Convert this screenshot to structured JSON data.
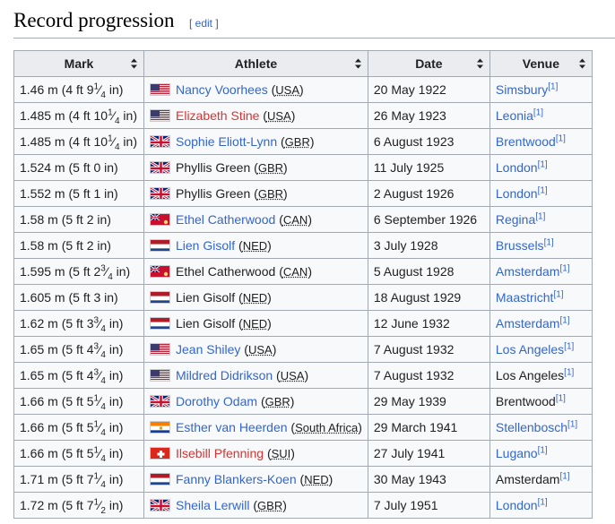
{
  "section": {
    "title": "Record progression",
    "edit_open": "[",
    "edit_label": "edit",
    "edit_close": "]"
  },
  "table": {
    "headers": [
      "Mark",
      "Athlete",
      "Date",
      "Venue"
    ],
    "rows": [
      {
        "mark": [
          "1.46 m (4 ft 9",
          "1",
          "4",
          " in)"
        ],
        "athlete": "Nancy Voorhees",
        "athlete_style": "link",
        "flag": "usa",
        "country": "USA",
        "date": "20 May 1922",
        "venue": "Simsbury",
        "venue_link": true,
        "ref": "[1]"
      },
      {
        "mark": [
          "1.485 m (4 ft 10",
          "1",
          "4",
          " in)"
        ],
        "athlete": "Elizabeth Stine",
        "athlete_style": "redlink",
        "flag": "usa",
        "country": "USA",
        "date": "26 May 1923",
        "venue": "Leonia",
        "venue_link": true,
        "ref": "[1]"
      },
      {
        "mark": [
          "1.485 m (4 ft 10",
          "1",
          "4",
          " in)"
        ],
        "athlete": "Sophie Eliott-Lynn",
        "athlete_style": "link",
        "flag": "gbr",
        "country": "GBR",
        "date": "6 August 1923",
        "venue": "Brentwood",
        "venue_link": true,
        "ref": "[1]"
      },
      {
        "mark": [
          "1.524 m (5 ft 0 in)"
        ],
        "athlete": "Phyllis Green",
        "athlete_style": "plain",
        "flag": "gbr",
        "country": "GBR",
        "date": "11 July 1925",
        "venue": "London",
        "venue_link": true,
        "ref": "[1]"
      },
      {
        "mark": [
          "1.552 m (5 ft 1 in)"
        ],
        "athlete": "Phyllis Green",
        "athlete_style": "plain",
        "flag": "gbr",
        "country": "GBR",
        "date": "2 August 1926",
        "venue": "London",
        "venue_link": true,
        "ref": "[1]"
      },
      {
        "mark": [
          "1.58 m (5 ft 2 in)"
        ],
        "athlete": "Ethel Catherwood",
        "athlete_style": "link",
        "flag": "can",
        "country": "CAN",
        "date": "6 September 1926",
        "venue": "Regina",
        "venue_link": true,
        "ref": "[1]"
      },
      {
        "mark": [
          "1.58 m (5 ft 2 in)"
        ],
        "athlete": "Lien Gisolf",
        "athlete_style": "link",
        "flag": "ned",
        "country": "NED",
        "date": "3 July 1928",
        "venue": "Brussels",
        "venue_link": true,
        "ref": "[1]"
      },
      {
        "mark": [
          "1.595 m (5 ft 2",
          "3",
          "4",
          " in)"
        ],
        "athlete": "Ethel Catherwood",
        "athlete_style": "plain",
        "flag": "can",
        "country": "CAN",
        "date": "5 August 1928",
        "venue": "Amsterdam",
        "venue_link": true,
        "ref": "[1]"
      },
      {
        "mark": [
          "1.605 m (5 ft 3 in)"
        ],
        "athlete": "Lien Gisolf",
        "athlete_style": "plain",
        "flag": "ned",
        "country": "NED",
        "date": "18 August 1929",
        "venue": "Maastricht",
        "venue_link": true,
        "ref": "[1]"
      },
      {
        "mark": [
          "1.62 m (5 ft 3",
          "3",
          "4",
          " in)"
        ],
        "athlete": "Lien Gisolf",
        "athlete_style": "plain",
        "flag": "ned",
        "country": "NED",
        "date": "12 June 1932",
        "venue": "Amsterdam",
        "venue_link": true,
        "ref": "[1]"
      },
      {
        "mark": [
          "1.65 m (5 ft 4",
          "3",
          "4",
          " in)"
        ],
        "athlete": "Jean Shiley",
        "athlete_style": "link",
        "flag": "usa",
        "country": "USA",
        "date": "7 August 1932",
        "venue": "Los Angeles",
        "venue_link": true,
        "ref": "[1]"
      },
      {
        "mark": [
          "1.65 m (5 ft 4",
          "3",
          "4",
          " in)"
        ],
        "athlete": "Mildred Didrikson",
        "athlete_style": "link",
        "flag": "usa",
        "country": "USA",
        "date": "7 August 1932",
        "venue": "Los Angeles",
        "venue_link": false,
        "ref": "[1]"
      },
      {
        "mark": [
          "1.66 m (5 ft 5",
          "1",
          "4",
          " in)"
        ],
        "athlete": "Dorothy Odam",
        "athlete_style": "link",
        "flag": "gbr",
        "country": "GBR",
        "date": "29 May 1939",
        "venue": "Brentwood",
        "venue_link": false,
        "ref": "[1]"
      },
      {
        "mark": [
          "1.66 m (5 ft 5",
          "1",
          "4",
          " in)"
        ],
        "athlete": "Esther van Heerden",
        "athlete_style": "link",
        "flag": "rsa",
        "country": "South Africa",
        "date": "29 March 1941",
        "venue": "Stellenbosch",
        "venue_link": true,
        "ref": "[1]"
      },
      {
        "mark": [
          "1.66 m (5 ft 5",
          "1",
          "4",
          " in)"
        ],
        "athlete": "Ilsebill Pfenning",
        "athlete_style": "redlink",
        "flag": "sui",
        "country": "SUI",
        "date": "27 July 1941",
        "venue": "Lugano",
        "venue_link": true,
        "ref": "[1]"
      },
      {
        "mark": [
          "1.71 m (5 ft 7",
          "1",
          "4",
          " in)"
        ],
        "athlete": "Fanny Blankers-Koen",
        "athlete_style": "link",
        "flag": "ned",
        "country": "NED",
        "date": "30 May 1943",
        "venue": "Amsterdam",
        "venue_link": false,
        "ref": "[1]"
      },
      {
        "mark": [
          "1.72 m (5 ft 7",
          "1",
          "2",
          " in)"
        ],
        "athlete": "Sheila Lerwill",
        "athlete_style": "link",
        "flag": "gbr",
        "country": "GBR",
        "date": "7 July 1951",
        "venue": "London",
        "venue_link": true,
        "ref": "[1]"
      }
    ]
  },
  "colors": {
    "link": "#3366cc",
    "redlink": "#d73333",
    "header_bg": "#eaecf0",
    "cell_bg": "#f8f9fa",
    "border": "#a2a9b1"
  },
  "icons": {
    "sort": "sort-arrows-icon"
  }
}
